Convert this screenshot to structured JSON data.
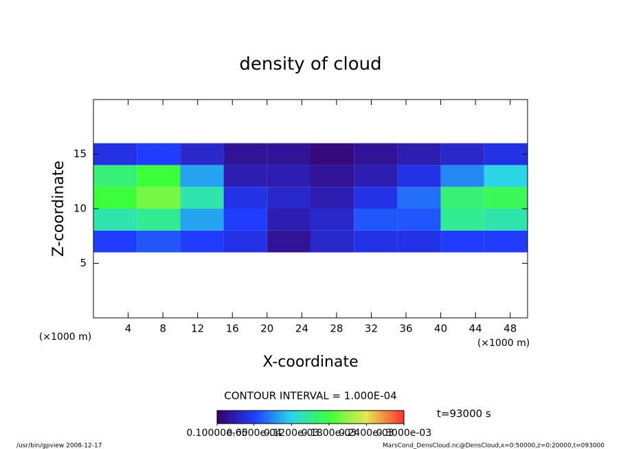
{
  "chart_data": {
    "type": "heatmap",
    "title": "density of cloud",
    "x_label": "X-coordinate",
    "y_label": "Z-coordinate",
    "x_unit": "(×1000 m)",
    "x_unit_right": "(×1000 m)",
    "xlim": [
      0,
      50
    ],
    "ylim": [
      0,
      20
    ],
    "xticks": [
      4,
      8,
      12,
      16,
      20,
      24,
      28,
      32,
      36,
      40,
      44,
      48
    ],
    "yticks": [
      5,
      10,
      15
    ],
    "x_edges": [
      0,
      5,
      10,
      15,
      20,
      25,
      30,
      35,
      40,
      45,
      50
    ],
    "z_edges": [
      6,
      8,
      10,
      12,
      14,
      16
    ],
    "values": [
      [
        6e-05,
        7e-05,
        6e-05,
        5e-05,
        2e-05,
        4e-05,
        5e-05,
        5e-05,
        6e-05,
        6e-05
      ],
      [
        0.00014,
        0.00015,
        0.0001,
        6e-05,
        3e-05,
        4e-05,
        7e-05,
        7e-05,
        0.00015,
        0.00014
      ],
      [
        0.00018,
        0.0002,
        0.00014,
        5e-05,
        4e-05,
        3e-05,
        5e-05,
        8e-05,
        0.00016,
        0.00017
      ],
      [
        0.00016,
        0.00018,
        0.0001,
        3e-05,
        3e-05,
        2e-05,
        3e-05,
        5e-05,
        9e-05,
        0.00012
      ],
      [
        5e-05,
        6e-05,
        4e-05,
        2e-05,
        2e-05,
        1e-05,
        2e-05,
        3e-05,
        4e-05,
        5e-05
      ]
    ],
    "contour_interval": "CONTOUR INTERVAL = 1.000E-04",
    "time": "t=93000 s",
    "colorbar": {
      "ticks": [
        {
          "value": 1e-06,
          "label": "0.10000e-05"
        },
        {
          "value": 6e-05,
          "label": "0.6000e-04"
        },
        {
          "value": 0.00012,
          "label": "0.1200e-03"
        },
        {
          "value": 0.00018,
          "label": "0.1800e-03"
        },
        {
          "value": 0.00024,
          "label": "0.2400e-03"
        },
        {
          "value": 0.0003,
          "label": "0.3000e-03"
        }
      ],
      "colors": [
        "#3a0066",
        "#1f3cff",
        "#2ad6e6",
        "#3cff3c",
        "#e6e650",
        "#ff3030"
      ]
    },
    "footer_left": "/usr/bin/gpview  2008-12-17",
    "footer_right": "MarsCond_DensCloud.nc@DensCloud,x=0:50000,z=0:20000,t=093000"
  }
}
